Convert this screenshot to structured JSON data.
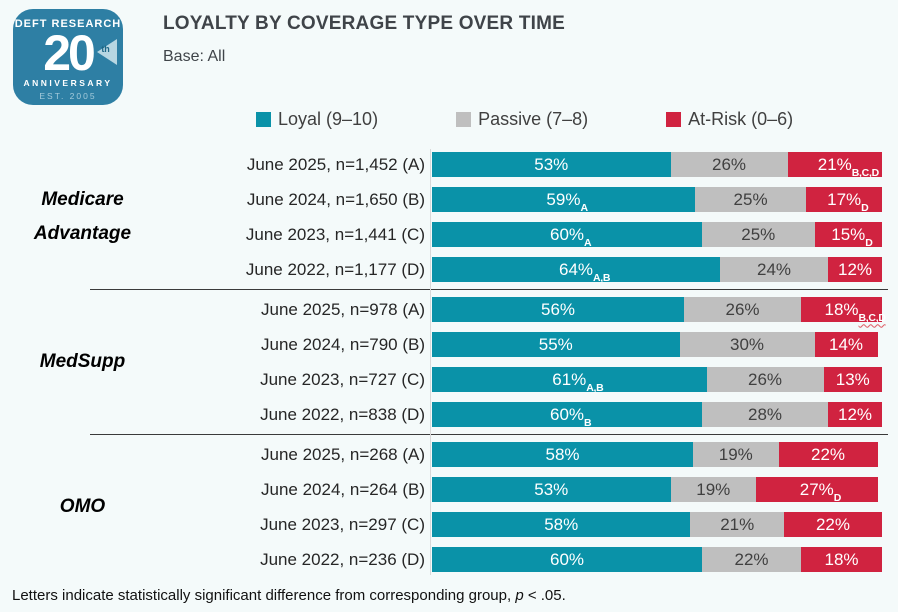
{
  "logo": {
    "brand": "DEFT RESEARCH",
    "number": "20",
    "suffix": "th",
    "anniversary": "ANNIVERSARY",
    "established": "EST. 2005",
    "color": "#2e7fa4"
  },
  "header": {
    "title": "LOYALTY BY COVERAGE TYPE OVER TIME",
    "subtitle": "Base: All"
  },
  "legend": [
    {
      "label": "Loyal (9–10)",
      "color": "#0a92a8"
    },
    {
      "label": "Passive (7–8)",
      "color": "#bfbfbf"
    },
    {
      "label": "At-Risk (0–6)",
      "color": "#d02340"
    }
  ],
  "footnote": {
    "prefix": "Letters indicate statistically significant difference from corresponding group, ",
    "p": "p",
    "suffix": " < .05."
  },
  "chart_data": {
    "type": "bar",
    "orientation": "horizontal",
    "stacked": true,
    "xlim": [
      0,
      100
    ],
    "unit": "%",
    "series": [
      "Loyal (9–10)",
      "Passive (7–8)",
      "At-Risk (0–6)"
    ],
    "colors": [
      "#0a92a8",
      "#bfbfbf",
      "#d02340"
    ],
    "groups": [
      {
        "name": "Medicare Advantage",
        "rows": [
          {
            "label": "June 2025, n=1,452 (A)",
            "values": [
              53,
              26,
              21
            ],
            "sigs": [
              "",
              "",
              "B,C,D"
            ]
          },
          {
            "label": "June 2024, n=1,650 (B)",
            "values": [
              59,
              25,
              17
            ],
            "sigs": [
              "A",
              "",
              "D"
            ]
          },
          {
            "label": "June 2023, n=1,441 (C)",
            "values": [
              60,
              25,
              15
            ],
            "sigs": [
              "A",
              "",
              "D"
            ]
          },
          {
            "label": "June 2022, n=1,177 (D)",
            "values": [
              64,
              24,
              12
            ],
            "sigs": [
              "A,B",
              "",
              ""
            ]
          }
        ]
      },
      {
        "name": "MedSupp",
        "rows": [
          {
            "label": "June 2025, n=978 (A)",
            "values": [
              56,
              26,
              18
            ],
            "sigs": [
              "",
              "",
              "B,C,D"
            ],
            "sig_underline_index": 2
          },
          {
            "label": "June 2024, n=790 (B)",
            "values": [
              55,
              30,
              14
            ],
            "sigs": [
              "",
              "",
              ""
            ]
          },
          {
            "label": "June 2023, n=727 (C)",
            "values": [
              61,
              26,
              13
            ],
            "sigs": [
              "A,B",
              "",
              ""
            ]
          },
          {
            "label": "June 2022, n=838 (D)",
            "values": [
              60,
              28,
              12
            ],
            "sigs": [
              "B",
              "",
              ""
            ]
          }
        ]
      },
      {
        "name": "OMO",
        "rows": [
          {
            "label": "June 2025, n=268 (A)",
            "values": [
              58,
              19,
              22
            ],
            "sigs": [
              "",
              "",
              ""
            ]
          },
          {
            "label": "June 2024, n=264 (B)",
            "values": [
              53,
              19,
              27
            ],
            "sigs": [
              "",
              "",
              "D"
            ]
          },
          {
            "label": "June 2023, n=297 (C)",
            "values": [
              58,
              21,
              22
            ],
            "sigs": [
              "",
              "",
              ""
            ]
          },
          {
            "label": "June 2022, n=236 (D)",
            "values": [
              60,
              22,
              18
            ],
            "sigs": [
              "",
              "",
              ""
            ]
          }
        ]
      }
    ]
  }
}
